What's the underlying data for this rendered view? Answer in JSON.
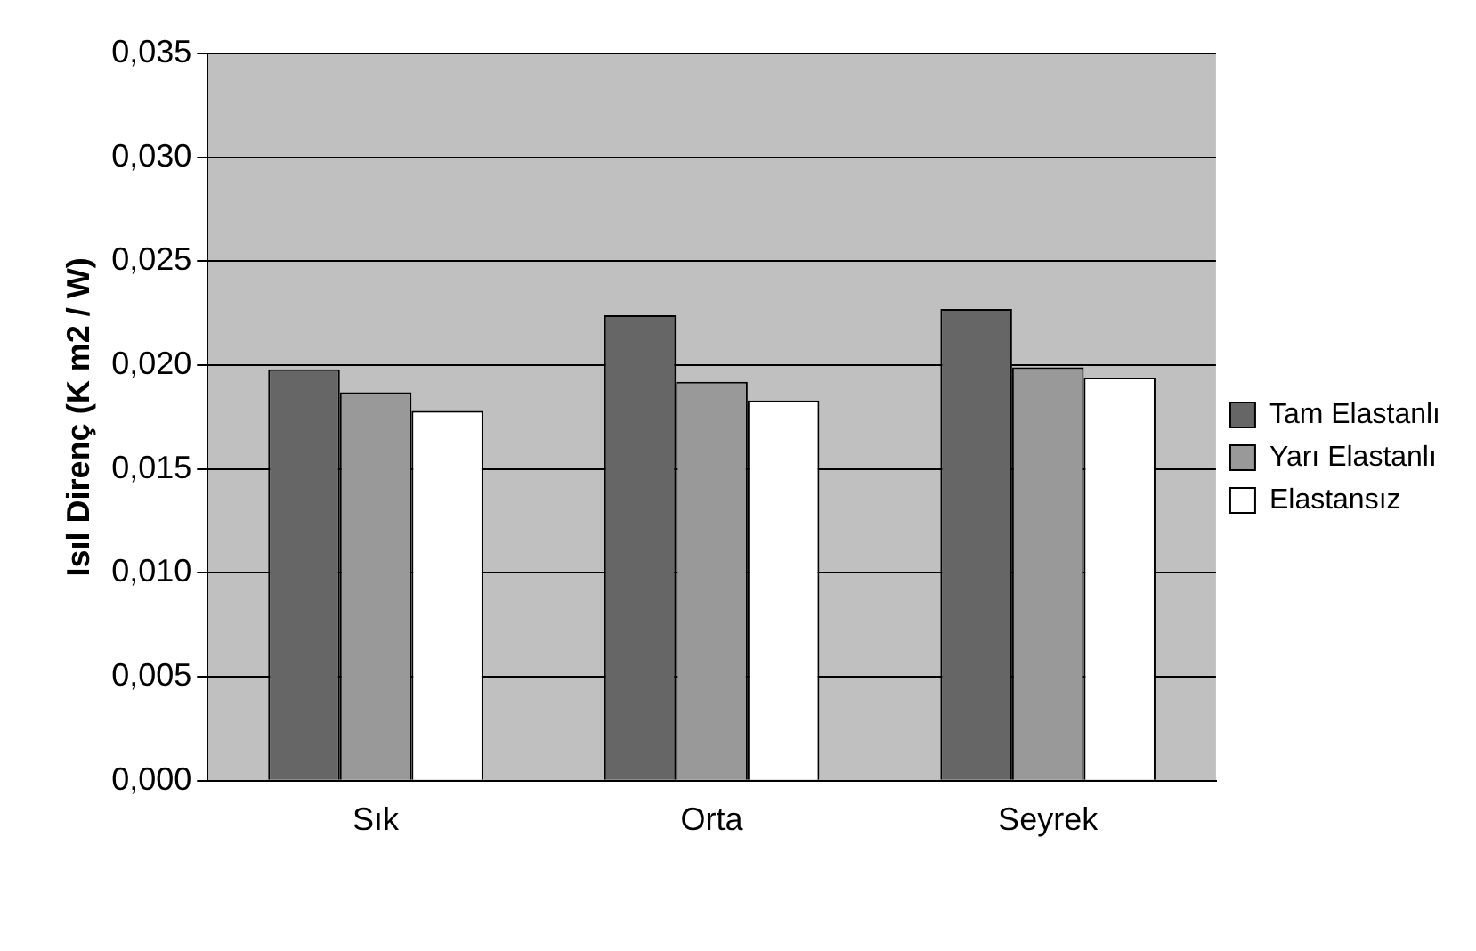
{
  "chart_data": {
    "type": "bar",
    "ylabel": "Isıl Direnç (K m2 / W)",
    "categories": [
      "Sık",
      "Orta",
      "Seyrek"
    ],
    "series": [
      {
        "name": "Tam Elastanlı",
        "color": "#666666",
        "values": [
          0.0198,
          0.0224,
          0.0227
        ]
      },
      {
        "name": "Yarı Elastanlı",
        "color": "#999999",
        "values": [
          0.0187,
          0.0192,
          0.0199
        ]
      },
      {
        "name": "Elastansız",
        "color": "#ffffff",
        "values": [
          0.0178,
          0.0183,
          0.0194
        ]
      }
    ],
    "ylim": [
      0,
      0.035
    ],
    "yticks": [
      {
        "value": 0,
        "label": "0,000"
      },
      {
        "value": 0.005,
        "label": "0,005"
      },
      {
        "value": 0.01,
        "label": "0,010"
      },
      {
        "value": 0.015,
        "label": "0,015"
      },
      {
        "value": 0.02,
        "label": "0,020"
      },
      {
        "value": 0.025,
        "label": "0,025"
      },
      {
        "value": 0.03,
        "label": "0,030"
      },
      {
        "value": 0.035,
        "label": "0,035"
      }
    ],
    "grid": "y",
    "legend": "right"
  }
}
